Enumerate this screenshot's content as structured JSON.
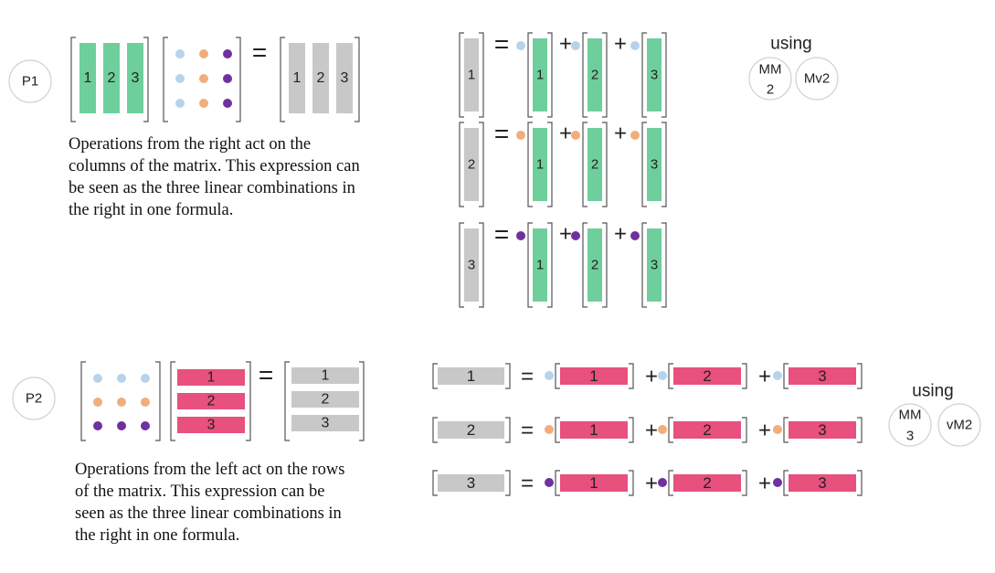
{
  "colors": {
    "green": "#6fcf9c",
    "pink": "#e8507e",
    "gray": "#c8c8c8",
    "light_blue": "#b7d3ec",
    "orange": "#f2ad7c",
    "purple": "#7030a0",
    "bracket": "#555555",
    "circle_stroke": "#d0d0d0"
  },
  "panels": [
    {
      "id": "P1",
      "label": "P1",
      "caption": "Operations from the right act on the columns of the matrix. This expression can be seen as the three linear combinations in the right in one formula.",
      "using_label": "using",
      "methods": [
        {
          "label": "MM",
          "sub": "2"
        },
        {
          "label": "Mv2",
          "sub": ""
        }
      ],
      "index_labels": [
        "1",
        "2",
        "3"
      ],
      "equals": "=",
      "plus": "+"
    },
    {
      "id": "P2",
      "label": "P2",
      "caption": "Operations from the left act on the rows of the matrix. This expression can be seen as the three linear combinations in the right in one formula.",
      "using_label": "using",
      "methods": [
        {
          "label": "MM",
          "sub": "3"
        },
        {
          "label": "vM2",
          "sub": ""
        }
      ],
      "index_labels": [
        "1",
        "2",
        "3"
      ],
      "equals": "=",
      "plus": "+"
    }
  ]
}
